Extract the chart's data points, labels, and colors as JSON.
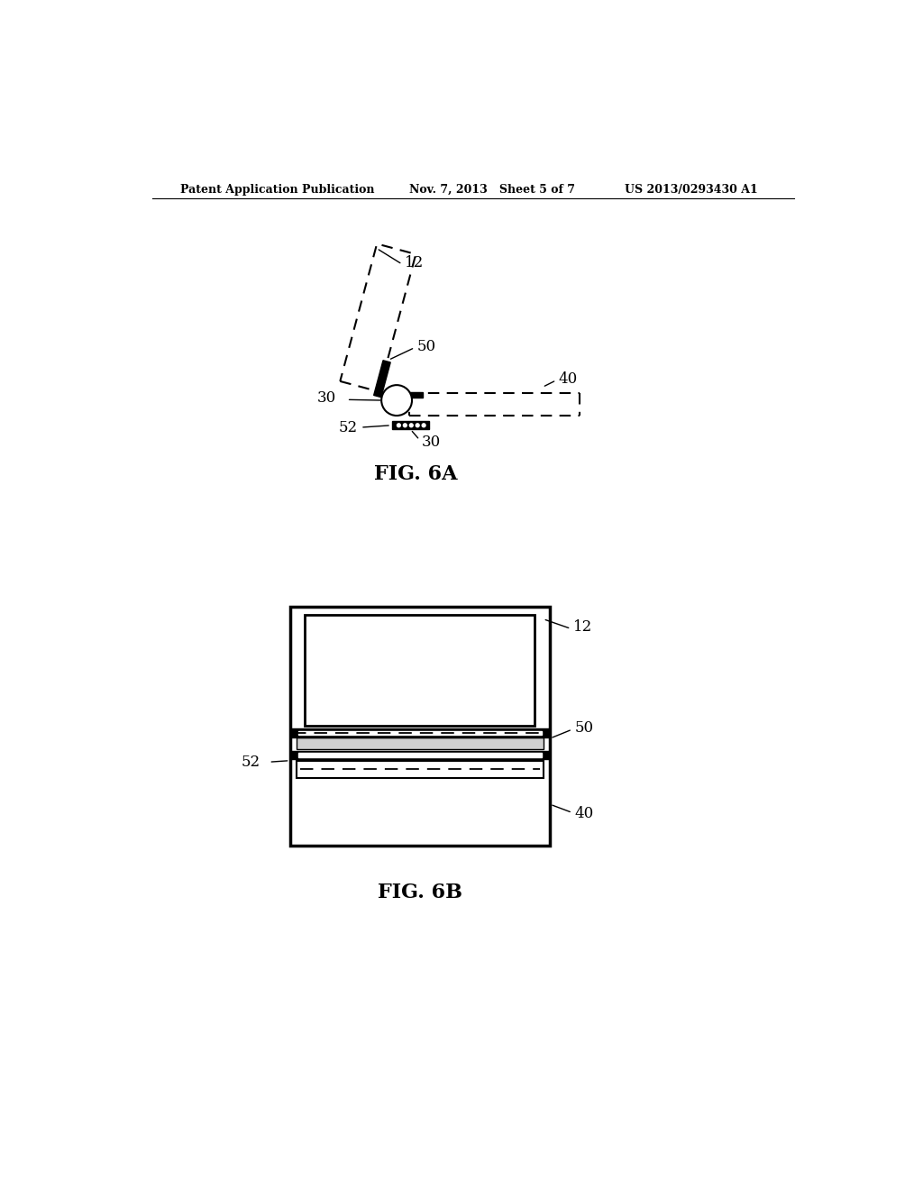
{
  "background_color": "#ffffff",
  "header_left": "Patent Application Publication",
  "header_mid": "Nov. 7, 2013   Sheet 5 of 7",
  "header_right": "US 2013/0293430 A1",
  "fig6a_label": "FIG. 6A",
  "fig6b_label": "FIG. 6B"
}
